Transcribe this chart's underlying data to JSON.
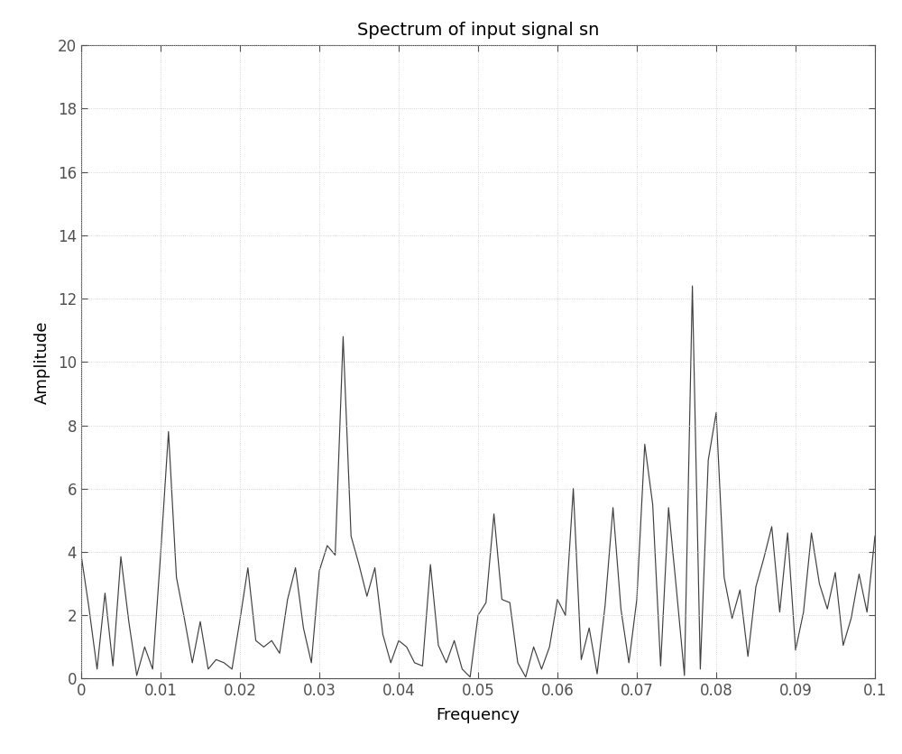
{
  "title": "Spectrum of input signal sn",
  "xlabel": "Frequency",
  "ylabel": "Amplitude",
  "xlim": [
    0,
    0.1
  ],
  "ylim": [
    0,
    20
  ],
  "yticks": [
    0,
    2,
    4,
    6,
    8,
    10,
    12,
    14,
    16,
    18,
    20
  ],
  "xticks": [
    0,
    0.01,
    0.02,
    0.03,
    0.04,
    0.05,
    0.06,
    0.07,
    0.08,
    0.09,
    0.1
  ],
  "line_color": "#404040",
  "background_color": "#ffffff",
  "title_fontsize": 14,
  "axis_label_fontsize": 13,
  "tick_fontsize": 12,
  "x": [
    0.0,
    0.001,
    0.002,
    0.003,
    0.004,
    0.005,
    0.006,
    0.007,
    0.008,
    0.009,
    0.01,
    0.011,
    0.012,
    0.013,
    0.014,
    0.015,
    0.016,
    0.017,
    0.018,
    0.019,
    0.02,
    0.021,
    0.022,
    0.023,
    0.024,
    0.025,
    0.026,
    0.027,
    0.028,
    0.029,
    0.03,
    0.031,
    0.032,
    0.033,
    0.034,
    0.035,
    0.036,
    0.037,
    0.038,
    0.039,
    0.04,
    0.041,
    0.042,
    0.043,
    0.044,
    0.045,
    0.046,
    0.047,
    0.048,
    0.049,
    0.05,
    0.051,
    0.052,
    0.053,
    0.054,
    0.055,
    0.056,
    0.057,
    0.058,
    0.059,
    0.06,
    0.061,
    0.062,
    0.063,
    0.064,
    0.065,
    0.066,
    0.067,
    0.068,
    0.069,
    0.07,
    0.071,
    0.072,
    0.073,
    0.074,
    0.075,
    0.076,
    0.077,
    0.078,
    0.079,
    0.08,
    0.081,
    0.082,
    0.083,
    0.084,
    0.085,
    0.086,
    0.087,
    0.088,
    0.089,
    0.09,
    0.091,
    0.092,
    0.093,
    0.094,
    0.095,
    0.096,
    0.097,
    0.098,
    0.099,
    0.1
  ],
  "y": [
    3.9,
    2.2,
    0.3,
    2.7,
    0.4,
    3.85,
    1.8,
    0.1,
    1.0,
    0.3,
    3.9,
    7.8,
    3.2,
    1.9,
    0.5,
    1.8,
    0.3,
    0.6,
    0.5,
    0.3,
    1.85,
    3.5,
    1.2,
    1.0,
    1.2,
    0.8,
    2.5,
    3.5,
    1.6,
    0.5,
    3.4,
    4.2,
    3.9,
    10.8,
    4.5,
    3.6,
    2.6,
    3.5,
    1.4,
    0.5,
    1.2,
    1.0,
    0.5,
    0.4,
    3.6,
    1.05,
    0.5,
    1.2,
    0.3,
    0.05,
    2.0,
    2.4,
    5.2,
    2.5,
    2.4,
    0.5,
    0.05,
    1.0,
    0.3,
    1.0,
    2.5,
    2.0,
    6.0,
    0.6,
    1.6,
    0.15,
    2.3,
    5.4,
    2.2,
    0.5,
    2.5,
    7.4,
    5.5,
    0.4,
    5.4,
    2.8,
    0.1,
    12.4,
    0.3,
    6.9,
    8.4,
    3.2,
    1.9,
    2.8,
    0.7,
    2.9,
    3.8,
    4.8,
    2.1,
    4.6,
    0.9,
    2.1,
    4.6,
    3.0,
    2.2,
    3.35,
    1.05,
    1.9,
    3.3,
    2.1,
    4.5
  ],
  "grid_color": "#c8c8c8",
  "grid_linestyle": ":",
  "grid_linewidth": 0.6
}
